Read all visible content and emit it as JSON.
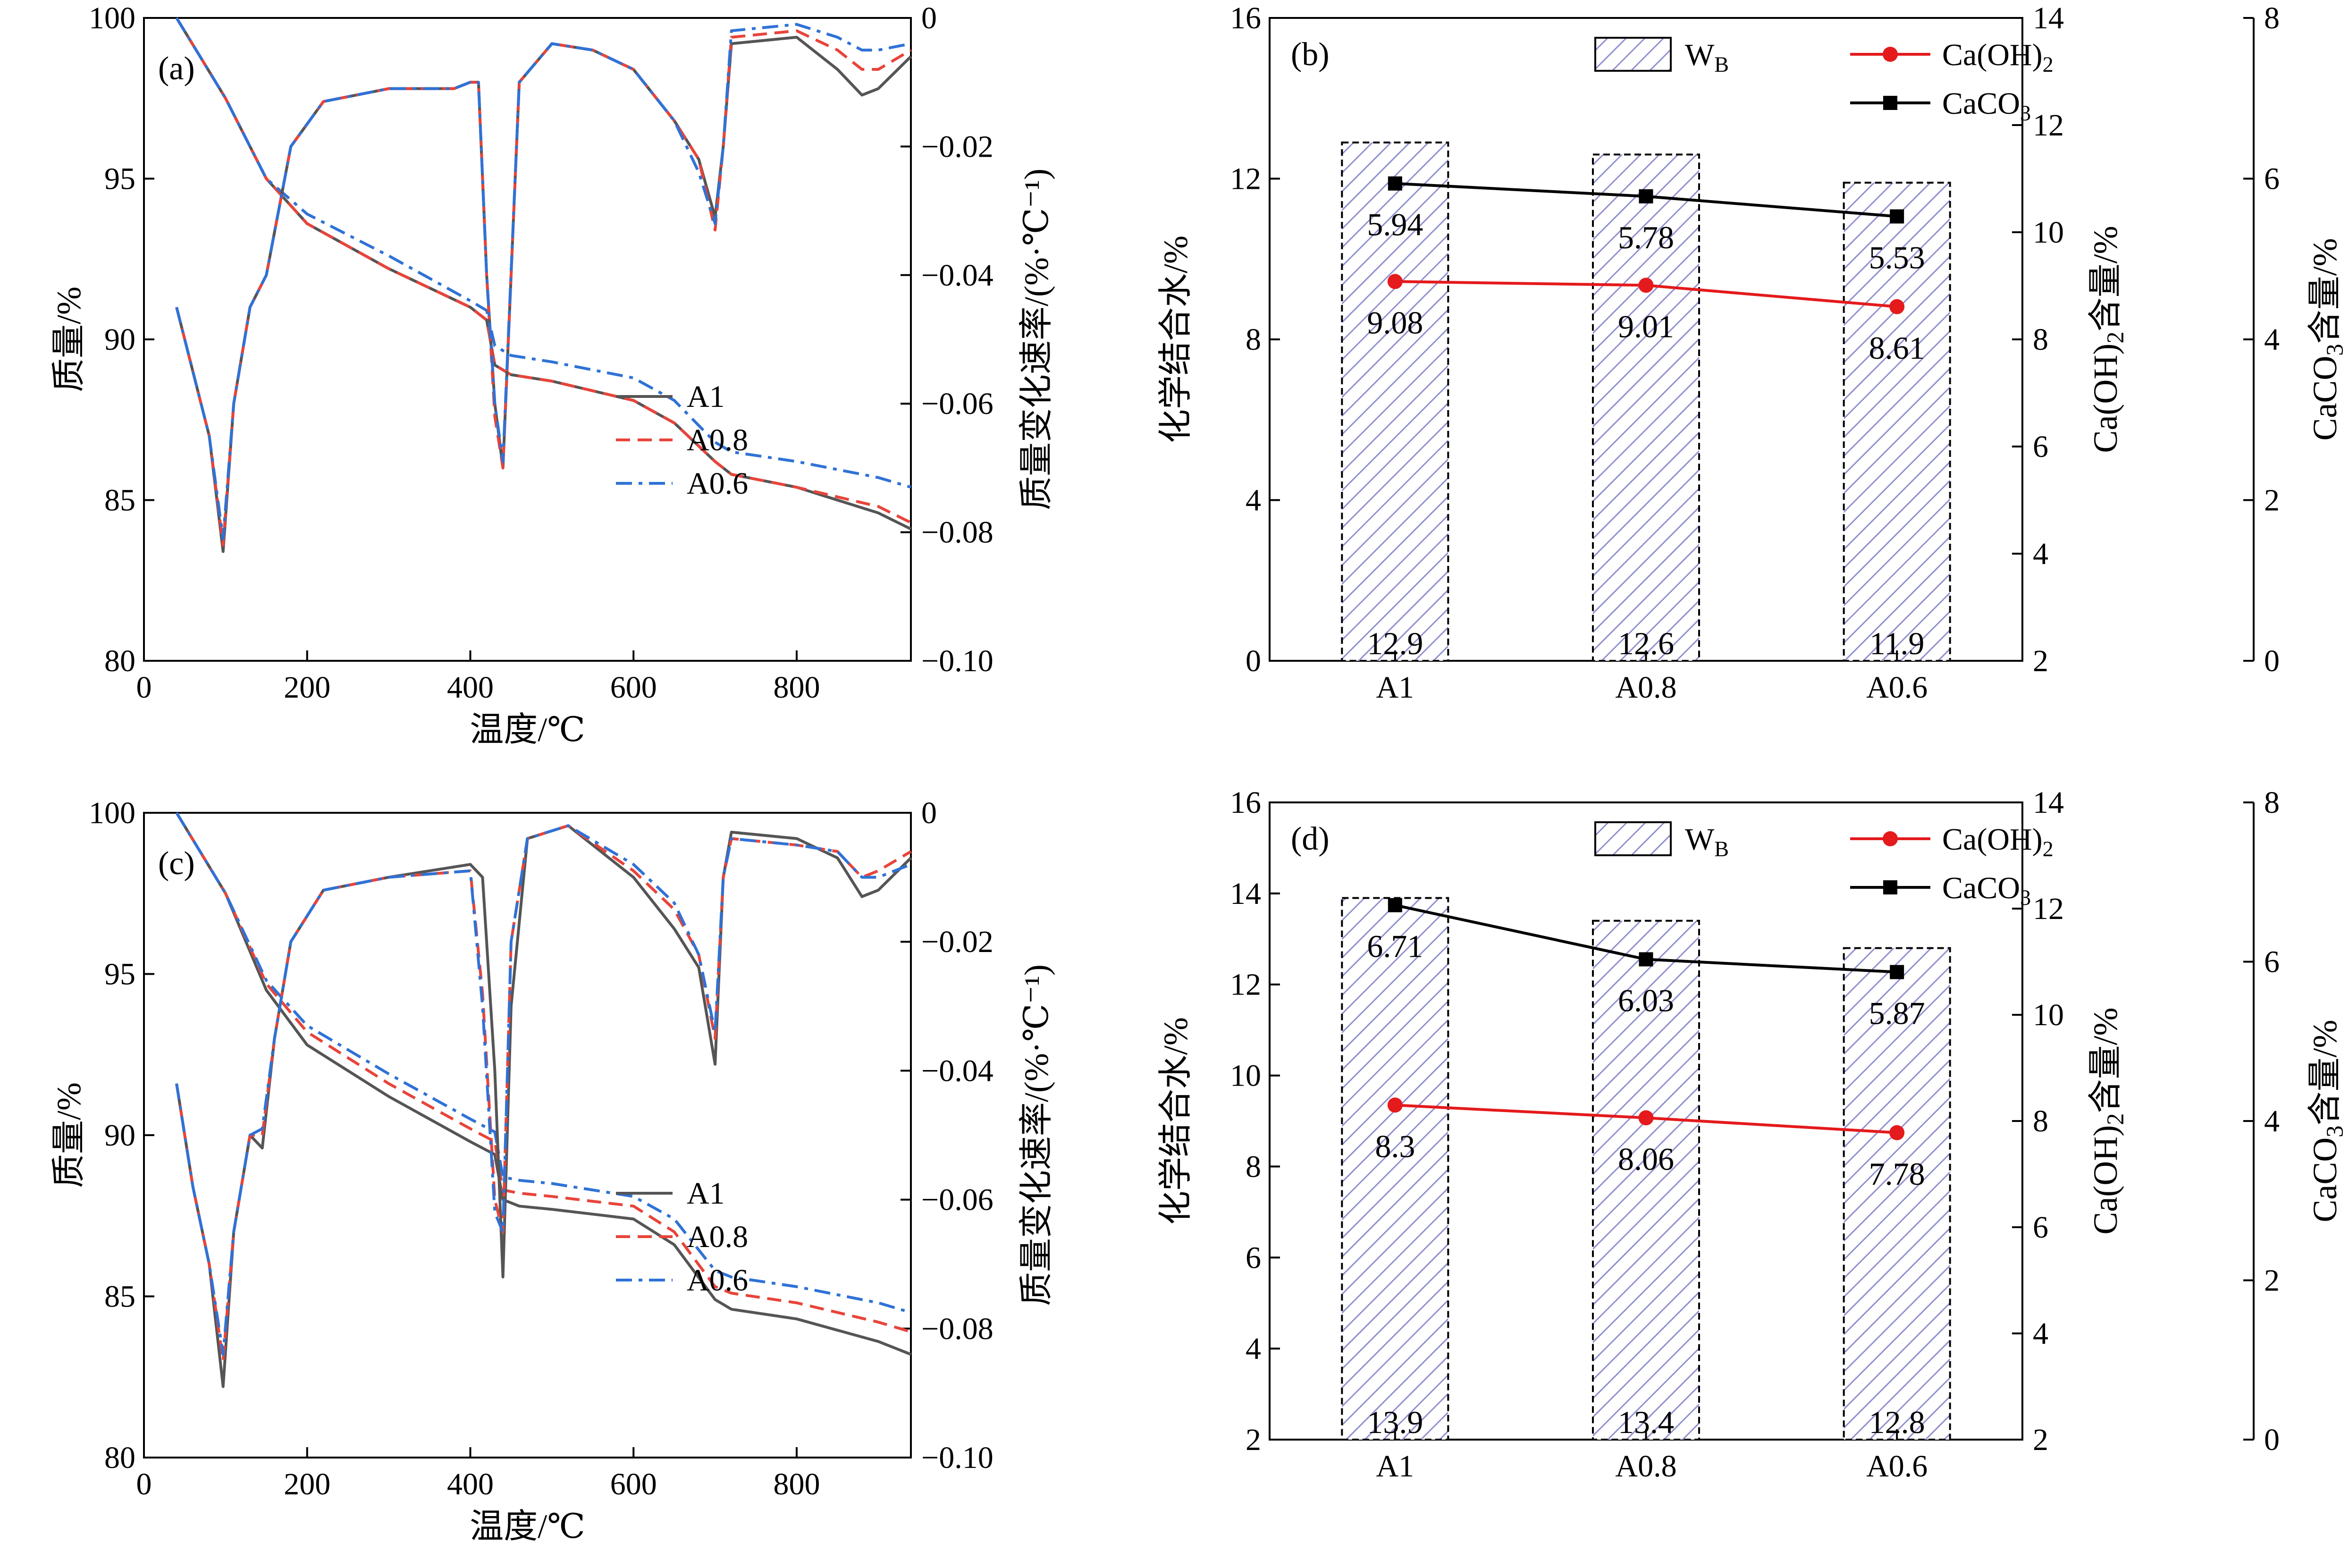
{
  "figure": {
    "panels": [
      "a",
      "b",
      "c",
      "d"
    ]
  },
  "colors": {
    "A1": "#555555",
    "A0.8": "#e8443a",
    "A0.6": "#2f72d6",
    "CaOH2": "#e41a1c",
    "CaCO3": "#000000",
    "bar_hatch": "#8f8fd0"
  },
  "chart_data": [
    {
      "id": "a",
      "type": "line",
      "panel_label": "(a)",
      "xlabel": "温度/℃",
      "ylabel_left": "质量/%",
      "ylabel_right": "质量变化速率/(%·℃⁻¹)",
      "xlim": [
        0,
        940
      ],
      "ylim_left": [
        80,
        100
      ],
      "ylim_right": [
        -0.1,
        0
      ],
      "x_ticks": [
        "0",
        "200",
        "400",
        "600",
        "800"
      ],
      "y_left_ticks": [
        "80",
        "85",
        "90",
        "95",
        "100"
      ],
      "y_right_ticks": [
        "−0.10",
        "−0.08",
        "−0.06",
        "−0.04",
        "−0.02",
        "0"
      ],
      "legend": [
        "A1",
        "A0.8",
        "A0.6"
      ],
      "tg_series": [
        {
          "name": "A1",
          "x": [
            40,
            100,
            150,
            200,
            300,
            400,
            420,
            430,
            450,
            500,
            600,
            650,
            700,
            720,
            800,
            900,
            940
          ],
          "y": [
            100,
            97.5,
            95,
            93.6,
            92.2,
            91,
            90.6,
            89.2,
            88.9,
            88.7,
            88.1,
            87.4,
            86.2,
            85.8,
            85.4,
            84.6,
            84.1
          ]
        },
        {
          "name": "A0.8",
          "x": [
            40,
            100,
            150,
            200,
            300,
            400,
            420,
            430,
            450,
            500,
            600,
            650,
            700,
            720,
            800,
            900,
            940
          ],
          "y": [
            100,
            97.5,
            95,
            93.6,
            92.2,
            91,
            90.6,
            89.2,
            88.9,
            88.7,
            88.1,
            87.4,
            86.2,
            85.8,
            85.4,
            84.8,
            84.3
          ]
        },
        {
          "name": "A0.6",
          "x": [
            40,
            100,
            150,
            200,
            300,
            400,
            420,
            430,
            450,
            500,
            600,
            650,
            700,
            720,
            800,
            900,
            940
          ],
          "y": [
            100,
            97.5,
            95,
            93.9,
            92.6,
            91.2,
            90.9,
            89.8,
            89.5,
            89.3,
            88.8,
            88.1,
            86.8,
            86.5,
            86.2,
            85.7,
            85.4
          ]
        }
      ],
      "dtg_series": [
        {
          "name": "A1",
          "x": [
            40,
            50,
            60,
            80,
            97,
            110,
            130,
            150,
            180,
            220,
            300,
            380,
            400,
            410,
            420,
            430,
            440,
            460,
            500,
            550,
            600,
            650,
            680,
            700,
            710,
            720,
            800,
            850,
            880,
            900,
            940
          ],
          "y": [
            -0.045,
            -0.05,
            -0.055,
            -0.065,
            -0.083,
            -0.06,
            -0.045,
            -0.04,
            -0.02,
            -0.013,
            -0.011,
            -0.011,
            -0.01,
            -0.01,
            -0.04,
            -0.06,
            -0.07,
            -0.01,
            -0.004,
            -0.005,
            -0.008,
            -0.016,
            -0.022,
            -0.031,
            -0.02,
            -0.004,
            -0.003,
            -0.008,
            -0.012,
            -0.011,
            -0.006
          ]
        },
        {
          "name": "A0.8",
          "x": [
            40,
            50,
            60,
            80,
            97,
            110,
            130,
            150,
            180,
            220,
            300,
            380,
            400,
            410,
            420,
            430,
            440,
            460,
            500,
            550,
            600,
            650,
            680,
            700,
            710,
            720,
            800,
            850,
            880,
            900,
            940
          ],
          "y": [
            -0.045,
            -0.05,
            -0.055,
            -0.065,
            -0.082,
            -0.06,
            -0.045,
            -0.04,
            -0.02,
            -0.013,
            -0.011,
            -0.011,
            -0.01,
            -0.01,
            -0.04,
            -0.062,
            -0.07,
            -0.01,
            -0.004,
            -0.005,
            -0.008,
            -0.016,
            -0.022,
            -0.033,
            -0.02,
            -0.003,
            -0.002,
            -0.005,
            -0.008,
            -0.008,
            -0.005
          ]
        },
        {
          "name": "A0.6",
          "x": [
            40,
            50,
            60,
            80,
            97,
            110,
            130,
            150,
            180,
            220,
            300,
            380,
            400,
            410,
            420,
            430,
            440,
            460,
            500,
            550,
            600,
            650,
            680,
            700,
            710,
            720,
            800,
            850,
            880,
            900,
            940
          ],
          "y": [
            -0.045,
            -0.05,
            -0.055,
            -0.065,
            -0.081,
            -0.06,
            -0.045,
            -0.04,
            -0.02,
            -0.013,
            -0.011,
            -0.011,
            -0.01,
            -0.01,
            -0.04,
            -0.06,
            -0.069,
            -0.01,
            -0.004,
            -0.005,
            -0.008,
            -0.016,
            -0.024,
            -0.032,
            -0.02,
            -0.002,
            -0.001,
            -0.003,
            -0.005,
            -0.005,
            -0.004
          ]
        }
      ]
    },
    {
      "id": "b",
      "type": "bar",
      "panel_label": "(b)",
      "categories": [
        "A1",
        "A0.8",
        "A0.6"
      ],
      "ylabel_left": "化学结合水/%",
      "ylabel_ca": "Ca(OH)₂含量/%",
      "ylabel_caco3": "CaCO₃含量/%",
      "ylim_left": [
        0,
        16
      ],
      "ylim_ca": [
        2,
        14
      ],
      "ylim_caco3": [
        0,
        8
      ],
      "y_left_ticks": [
        "0",
        "4",
        "8",
        "12",
        "16"
      ],
      "y_ca_ticks": [
        "2",
        "4",
        "6",
        "8",
        "10",
        "12",
        "14"
      ],
      "y_caco3_ticks": [
        "0",
        "2",
        "4",
        "6",
        "8"
      ],
      "legend": {
        "wb": "WB",
        "caoh2": "Ca(OH)₂",
        "caco3": "CaCO₃"
      },
      "wb_values": [
        12.9,
        12.6,
        11.9
      ],
      "wb_labels": [
        "12.9",
        "12.6",
        "11.9"
      ],
      "caoh2_values": [
        9.08,
        9.01,
        8.61
      ],
      "caoh2_labels": [
        "9.08",
        "9.01",
        "8.61"
      ],
      "caco3_values": [
        5.94,
        5.78,
        5.53
      ],
      "caco3_labels": [
        "5.94",
        "5.78",
        "5.53"
      ]
    },
    {
      "id": "c",
      "type": "line",
      "panel_label": "(c)",
      "xlabel": "温度/℃",
      "ylabel_left": "质量/%",
      "ylabel_right": "质量变化速率/(%·℃⁻¹)",
      "xlim": [
        0,
        940
      ],
      "ylim_left": [
        80,
        100
      ],
      "ylim_right": [
        -0.1,
        0
      ],
      "x_ticks": [
        "0",
        "200",
        "400",
        "600",
        "800"
      ],
      "y_left_ticks": [
        "80",
        "85",
        "90",
        "95",
        "100"
      ],
      "y_right_ticks": [
        "−0.10",
        "−0.08",
        "−0.06",
        "−0.04",
        "−0.02",
        "0"
      ],
      "legend": [
        "A1",
        "A0.8",
        "A0.6"
      ],
      "tg_series": [
        {
          "name": "A1",
          "x": [
            40,
            100,
            150,
            200,
            300,
            400,
            430,
            440,
            460,
            500,
            600,
            650,
            700,
            720,
            800,
            900,
            940
          ],
          "y": [
            100,
            97.5,
            94.5,
            92.8,
            91.2,
            89.8,
            89.4,
            88,
            87.8,
            87.7,
            87.4,
            86.6,
            84.9,
            84.6,
            84.3,
            83.6,
            83.2
          ]
        },
        {
          "name": "A0.8",
          "x": [
            40,
            100,
            150,
            200,
            300,
            400,
            430,
            440,
            460,
            500,
            600,
            650,
            700,
            720,
            800,
            900,
            940
          ],
          "y": [
            100,
            97.5,
            94.7,
            93.2,
            91.6,
            90.2,
            89.8,
            88.3,
            88.2,
            88.1,
            87.8,
            87,
            85.3,
            85.1,
            84.8,
            84.2,
            83.9
          ]
        },
        {
          "name": "A0.6",
          "x": [
            40,
            100,
            150,
            200,
            300,
            400,
            430,
            440,
            460,
            500,
            600,
            650,
            700,
            720,
            800,
            900,
            940
          ],
          "y": [
            100,
            97.5,
            94.8,
            93.4,
            91.9,
            90.5,
            90.1,
            88.7,
            88.6,
            88.5,
            88.1,
            87.4,
            85.8,
            85.6,
            85.3,
            84.8,
            84.5
          ]
        }
      ],
      "dtg_series": [
        {
          "name": "A1",
          "x": [
            40,
            50,
            60,
            80,
            97,
            110,
            130,
            145,
            160,
            180,
            220,
            300,
            400,
            415,
            430,
            440,
            450,
            470,
            520,
            600,
            650,
            680,
            700,
            710,
            720,
            800,
            850,
            880,
            900,
            940
          ],
          "y": [
            -0.042,
            -0.05,
            -0.058,
            -0.07,
            -0.089,
            -0.065,
            -0.05,
            -0.052,
            -0.035,
            -0.02,
            -0.012,
            -0.01,
            -0.008,
            -0.01,
            -0.04,
            -0.072,
            -0.03,
            -0.004,
            -0.002,
            -0.01,
            -0.018,
            -0.024,
            -0.039,
            -0.01,
            -0.003,
            -0.004,
            -0.007,
            -0.013,
            -0.012,
            -0.007
          ]
        },
        {
          "name": "A0.8",
          "x": [
            40,
            50,
            60,
            80,
            97,
            110,
            130,
            145,
            160,
            180,
            220,
            300,
            400,
            415,
            430,
            440,
            450,
            470,
            520,
            600,
            650,
            680,
            700,
            710,
            720,
            800,
            850,
            880,
            900,
            940
          ],
          "y": [
            -0.042,
            -0.05,
            -0.058,
            -0.07,
            -0.085,
            -0.065,
            -0.05,
            -0.05,
            -0.035,
            -0.02,
            -0.012,
            -0.01,
            -0.009,
            -0.028,
            -0.06,
            -0.065,
            -0.02,
            -0.004,
            -0.002,
            -0.009,
            -0.015,
            -0.022,
            -0.035,
            -0.01,
            -0.004,
            -0.005,
            -0.006,
            -0.01,
            -0.009,
            -0.006
          ]
        },
        {
          "name": "A0.6",
          "x": [
            40,
            50,
            60,
            80,
            97,
            110,
            130,
            145,
            160,
            180,
            220,
            300,
            400,
            415,
            430,
            440,
            450,
            470,
            520,
            600,
            650,
            680,
            700,
            710,
            720,
            800,
            850,
            880,
            900,
            940
          ],
          "y": [
            -0.042,
            -0.05,
            -0.058,
            -0.07,
            -0.084,
            -0.065,
            -0.05,
            -0.049,
            -0.035,
            -0.02,
            -0.012,
            -0.01,
            -0.009,
            -0.03,
            -0.062,
            -0.065,
            -0.02,
            -0.004,
            -0.002,
            -0.008,
            -0.014,
            -0.022,
            -0.034,
            -0.01,
            -0.004,
            -0.005,
            -0.006,
            -0.01,
            -0.01,
            -0.008
          ]
        }
      ]
    },
    {
      "id": "d",
      "type": "bar",
      "panel_label": "(d)",
      "categories": [
        "A1",
        "A0.8",
        "A0.6"
      ],
      "ylabel_left": "化学结合水/%",
      "ylabel_ca": "Ca(OH)₂含量/%",
      "ylabel_caco3": "CaCO₃含量/%",
      "ylim_left": [
        2,
        16
      ],
      "ylim_ca": [
        2,
        14
      ],
      "ylim_caco3": [
        0,
        8
      ],
      "y_left_ticks": [
        "2",
        "4",
        "6",
        "8",
        "10",
        "12",
        "14",
        "16"
      ],
      "y_ca_ticks": [
        "2",
        "4",
        "6",
        "8",
        "10",
        "12",
        "14"
      ],
      "y_caco3_ticks": [
        "0",
        "2",
        "4",
        "6",
        "8"
      ],
      "legend": {
        "wb": "WB",
        "caoh2": "Ca(OH)₂",
        "caco3": "CaCO₃"
      },
      "wb_values": [
        13.9,
        13.4,
        12.8
      ],
      "wb_labels": [
        "13.9",
        "13.4",
        "12.8"
      ],
      "caoh2_values": [
        8.3,
        8.06,
        7.78
      ],
      "caoh2_labels": [
        "8.3",
        "8.06",
        "7.78"
      ],
      "caco3_values": [
        6.71,
        6.03,
        5.87
      ],
      "caco3_labels": [
        "6.71",
        "6.03",
        "5.87"
      ]
    }
  ]
}
